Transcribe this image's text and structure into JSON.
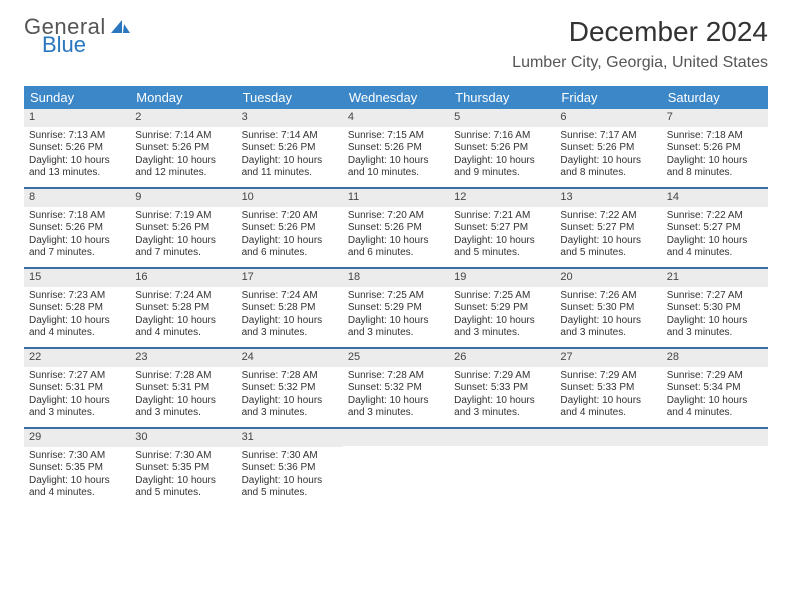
{
  "logo": {
    "text1": "General",
    "text2": "Blue",
    "color_general": "#555555",
    "color_blue": "#2a77c0"
  },
  "title": "December 2024",
  "location": "Lumber City, Georgia, United States",
  "header_bg": "#3b87c8",
  "week_border": "#3b6ea3",
  "daynum_bg": "#ececec",
  "weekdays": [
    "Sunday",
    "Monday",
    "Tuesday",
    "Wednesday",
    "Thursday",
    "Friday",
    "Saturday"
  ],
  "weeks": [
    [
      {
        "n": "1",
        "sr": "Sunrise: 7:13 AM",
        "ss": "Sunset: 5:26 PM",
        "d1": "Daylight: 10 hours",
        "d2": "and 13 minutes."
      },
      {
        "n": "2",
        "sr": "Sunrise: 7:14 AM",
        "ss": "Sunset: 5:26 PM",
        "d1": "Daylight: 10 hours",
        "d2": "and 12 minutes."
      },
      {
        "n": "3",
        "sr": "Sunrise: 7:14 AM",
        "ss": "Sunset: 5:26 PM",
        "d1": "Daylight: 10 hours",
        "d2": "and 11 minutes."
      },
      {
        "n": "4",
        "sr": "Sunrise: 7:15 AM",
        "ss": "Sunset: 5:26 PM",
        "d1": "Daylight: 10 hours",
        "d2": "and 10 minutes."
      },
      {
        "n": "5",
        "sr": "Sunrise: 7:16 AM",
        "ss": "Sunset: 5:26 PM",
        "d1": "Daylight: 10 hours",
        "d2": "and 9 minutes."
      },
      {
        "n": "6",
        "sr": "Sunrise: 7:17 AM",
        "ss": "Sunset: 5:26 PM",
        "d1": "Daylight: 10 hours",
        "d2": "and 8 minutes."
      },
      {
        "n": "7",
        "sr": "Sunrise: 7:18 AM",
        "ss": "Sunset: 5:26 PM",
        "d1": "Daylight: 10 hours",
        "d2": "and 8 minutes."
      }
    ],
    [
      {
        "n": "8",
        "sr": "Sunrise: 7:18 AM",
        "ss": "Sunset: 5:26 PM",
        "d1": "Daylight: 10 hours",
        "d2": "and 7 minutes."
      },
      {
        "n": "9",
        "sr": "Sunrise: 7:19 AM",
        "ss": "Sunset: 5:26 PM",
        "d1": "Daylight: 10 hours",
        "d2": "and 7 minutes."
      },
      {
        "n": "10",
        "sr": "Sunrise: 7:20 AM",
        "ss": "Sunset: 5:26 PM",
        "d1": "Daylight: 10 hours",
        "d2": "and 6 minutes."
      },
      {
        "n": "11",
        "sr": "Sunrise: 7:20 AM",
        "ss": "Sunset: 5:26 PM",
        "d1": "Daylight: 10 hours",
        "d2": "and 6 minutes."
      },
      {
        "n": "12",
        "sr": "Sunrise: 7:21 AM",
        "ss": "Sunset: 5:27 PM",
        "d1": "Daylight: 10 hours",
        "d2": "and 5 minutes."
      },
      {
        "n": "13",
        "sr": "Sunrise: 7:22 AM",
        "ss": "Sunset: 5:27 PM",
        "d1": "Daylight: 10 hours",
        "d2": "and 5 minutes."
      },
      {
        "n": "14",
        "sr": "Sunrise: 7:22 AM",
        "ss": "Sunset: 5:27 PM",
        "d1": "Daylight: 10 hours",
        "d2": "and 4 minutes."
      }
    ],
    [
      {
        "n": "15",
        "sr": "Sunrise: 7:23 AM",
        "ss": "Sunset: 5:28 PM",
        "d1": "Daylight: 10 hours",
        "d2": "and 4 minutes."
      },
      {
        "n": "16",
        "sr": "Sunrise: 7:24 AM",
        "ss": "Sunset: 5:28 PM",
        "d1": "Daylight: 10 hours",
        "d2": "and 4 minutes."
      },
      {
        "n": "17",
        "sr": "Sunrise: 7:24 AM",
        "ss": "Sunset: 5:28 PM",
        "d1": "Daylight: 10 hours",
        "d2": "and 3 minutes."
      },
      {
        "n": "18",
        "sr": "Sunrise: 7:25 AM",
        "ss": "Sunset: 5:29 PM",
        "d1": "Daylight: 10 hours",
        "d2": "and 3 minutes."
      },
      {
        "n": "19",
        "sr": "Sunrise: 7:25 AM",
        "ss": "Sunset: 5:29 PM",
        "d1": "Daylight: 10 hours",
        "d2": "and 3 minutes."
      },
      {
        "n": "20",
        "sr": "Sunrise: 7:26 AM",
        "ss": "Sunset: 5:30 PM",
        "d1": "Daylight: 10 hours",
        "d2": "and 3 minutes."
      },
      {
        "n": "21",
        "sr": "Sunrise: 7:27 AM",
        "ss": "Sunset: 5:30 PM",
        "d1": "Daylight: 10 hours",
        "d2": "and 3 minutes."
      }
    ],
    [
      {
        "n": "22",
        "sr": "Sunrise: 7:27 AM",
        "ss": "Sunset: 5:31 PM",
        "d1": "Daylight: 10 hours",
        "d2": "and 3 minutes."
      },
      {
        "n": "23",
        "sr": "Sunrise: 7:28 AM",
        "ss": "Sunset: 5:31 PM",
        "d1": "Daylight: 10 hours",
        "d2": "and 3 minutes."
      },
      {
        "n": "24",
        "sr": "Sunrise: 7:28 AM",
        "ss": "Sunset: 5:32 PM",
        "d1": "Daylight: 10 hours",
        "d2": "and 3 minutes."
      },
      {
        "n": "25",
        "sr": "Sunrise: 7:28 AM",
        "ss": "Sunset: 5:32 PM",
        "d1": "Daylight: 10 hours",
        "d2": "and 3 minutes."
      },
      {
        "n": "26",
        "sr": "Sunrise: 7:29 AM",
        "ss": "Sunset: 5:33 PM",
        "d1": "Daylight: 10 hours",
        "d2": "and 3 minutes."
      },
      {
        "n": "27",
        "sr": "Sunrise: 7:29 AM",
        "ss": "Sunset: 5:33 PM",
        "d1": "Daylight: 10 hours",
        "d2": "and 4 minutes."
      },
      {
        "n": "28",
        "sr": "Sunrise: 7:29 AM",
        "ss": "Sunset: 5:34 PM",
        "d1": "Daylight: 10 hours",
        "d2": "and 4 minutes."
      }
    ],
    [
      {
        "n": "29",
        "sr": "Sunrise: 7:30 AM",
        "ss": "Sunset: 5:35 PM",
        "d1": "Daylight: 10 hours",
        "d2": "and 4 minutes."
      },
      {
        "n": "30",
        "sr": "Sunrise: 7:30 AM",
        "ss": "Sunset: 5:35 PM",
        "d1": "Daylight: 10 hours",
        "d2": "and 5 minutes."
      },
      {
        "n": "31",
        "sr": "Sunrise: 7:30 AM",
        "ss": "Sunset: 5:36 PM",
        "d1": "Daylight: 10 hours",
        "d2": "and 5 minutes."
      },
      null,
      null,
      null,
      null
    ]
  ]
}
